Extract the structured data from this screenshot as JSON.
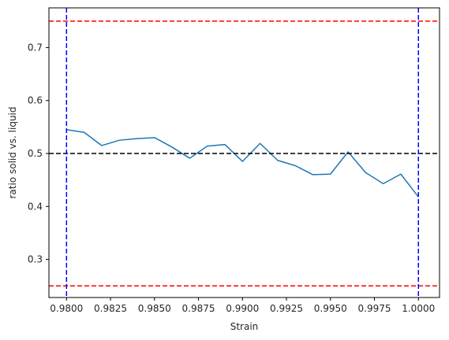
{
  "chart_data": {
    "type": "line",
    "title": "",
    "xlabel": "Strain",
    "ylabel": "ratio solid vs. liquid",
    "xlim": [
      0.979,
      1.0012
    ],
    "ylim": [
      0.228,
      0.775
    ],
    "grid": false,
    "x_ticks": [
      {
        "value": 0.98,
        "label": "0.9800"
      },
      {
        "value": 0.9825,
        "label": "0.9825"
      },
      {
        "value": 0.985,
        "label": "0.9850"
      },
      {
        "value": 0.9875,
        "label": "0.9875"
      },
      {
        "value": 0.99,
        "label": "0.9900"
      },
      {
        "value": 0.9925,
        "label": "0.9925"
      },
      {
        "value": 0.995,
        "label": "0.9950"
      },
      {
        "value": 0.9975,
        "label": "0.9975"
      },
      {
        "value": 1.0,
        "label": "1.0000"
      }
    ],
    "y_ticks": [
      {
        "value": 0.3,
        "label": "0.3"
      },
      {
        "value": 0.4,
        "label": "0.4"
      },
      {
        "value": 0.5,
        "label": "0.5"
      },
      {
        "value": 0.6,
        "label": "0.6"
      },
      {
        "value": 0.7,
        "label": "0.7"
      }
    ],
    "series": [
      {
        "color": "#1f77b4",
        "x": [
          0.98,
          0.981,
          0.982,
          0.983,
          0.984,
          0.985,
          0.986,
          0.987,
          0.988,
          0.989,
          0.99,
          0.991,
          0.992,
          0.993,
          0.994,
          0.995,
          0.996,
          0.997,
          0.998,
          0.999,
          1.0
        ],
        "y": [
          0.545,
          0.54,
          0.515,
          0.525,
          0.528,
          0.53,
          0.512,
          0.491,
          0.514,
          0.517,
          0.485,
          0.519,
          0.487,
          0.477,
          0.46,
          0.461,
          0.503,
          0.464,
          0.443,
          0.461,
          0.418
        ]
      }
    ],
    "reference_lines": [
      {
        "orientation": "horizontal",
        "value": 0.75,
        "color": "#ff0000"
      },
      {
        "orientation": "horizontal",
        "value": 0.25,
        "color": "#ff0000"
      },
      {
        "orientation": "horizontal",
        "value": 0.5,
        "color": "#000000"
      },
      {
        "orientation": "vertical",
        "value": 0.98,
        "color": "#0000ff"
      },
      {
        "orientation": "vertical",
        "value": 1.0,
        "color": "#0000ff"
      }
    ]
  }
}
